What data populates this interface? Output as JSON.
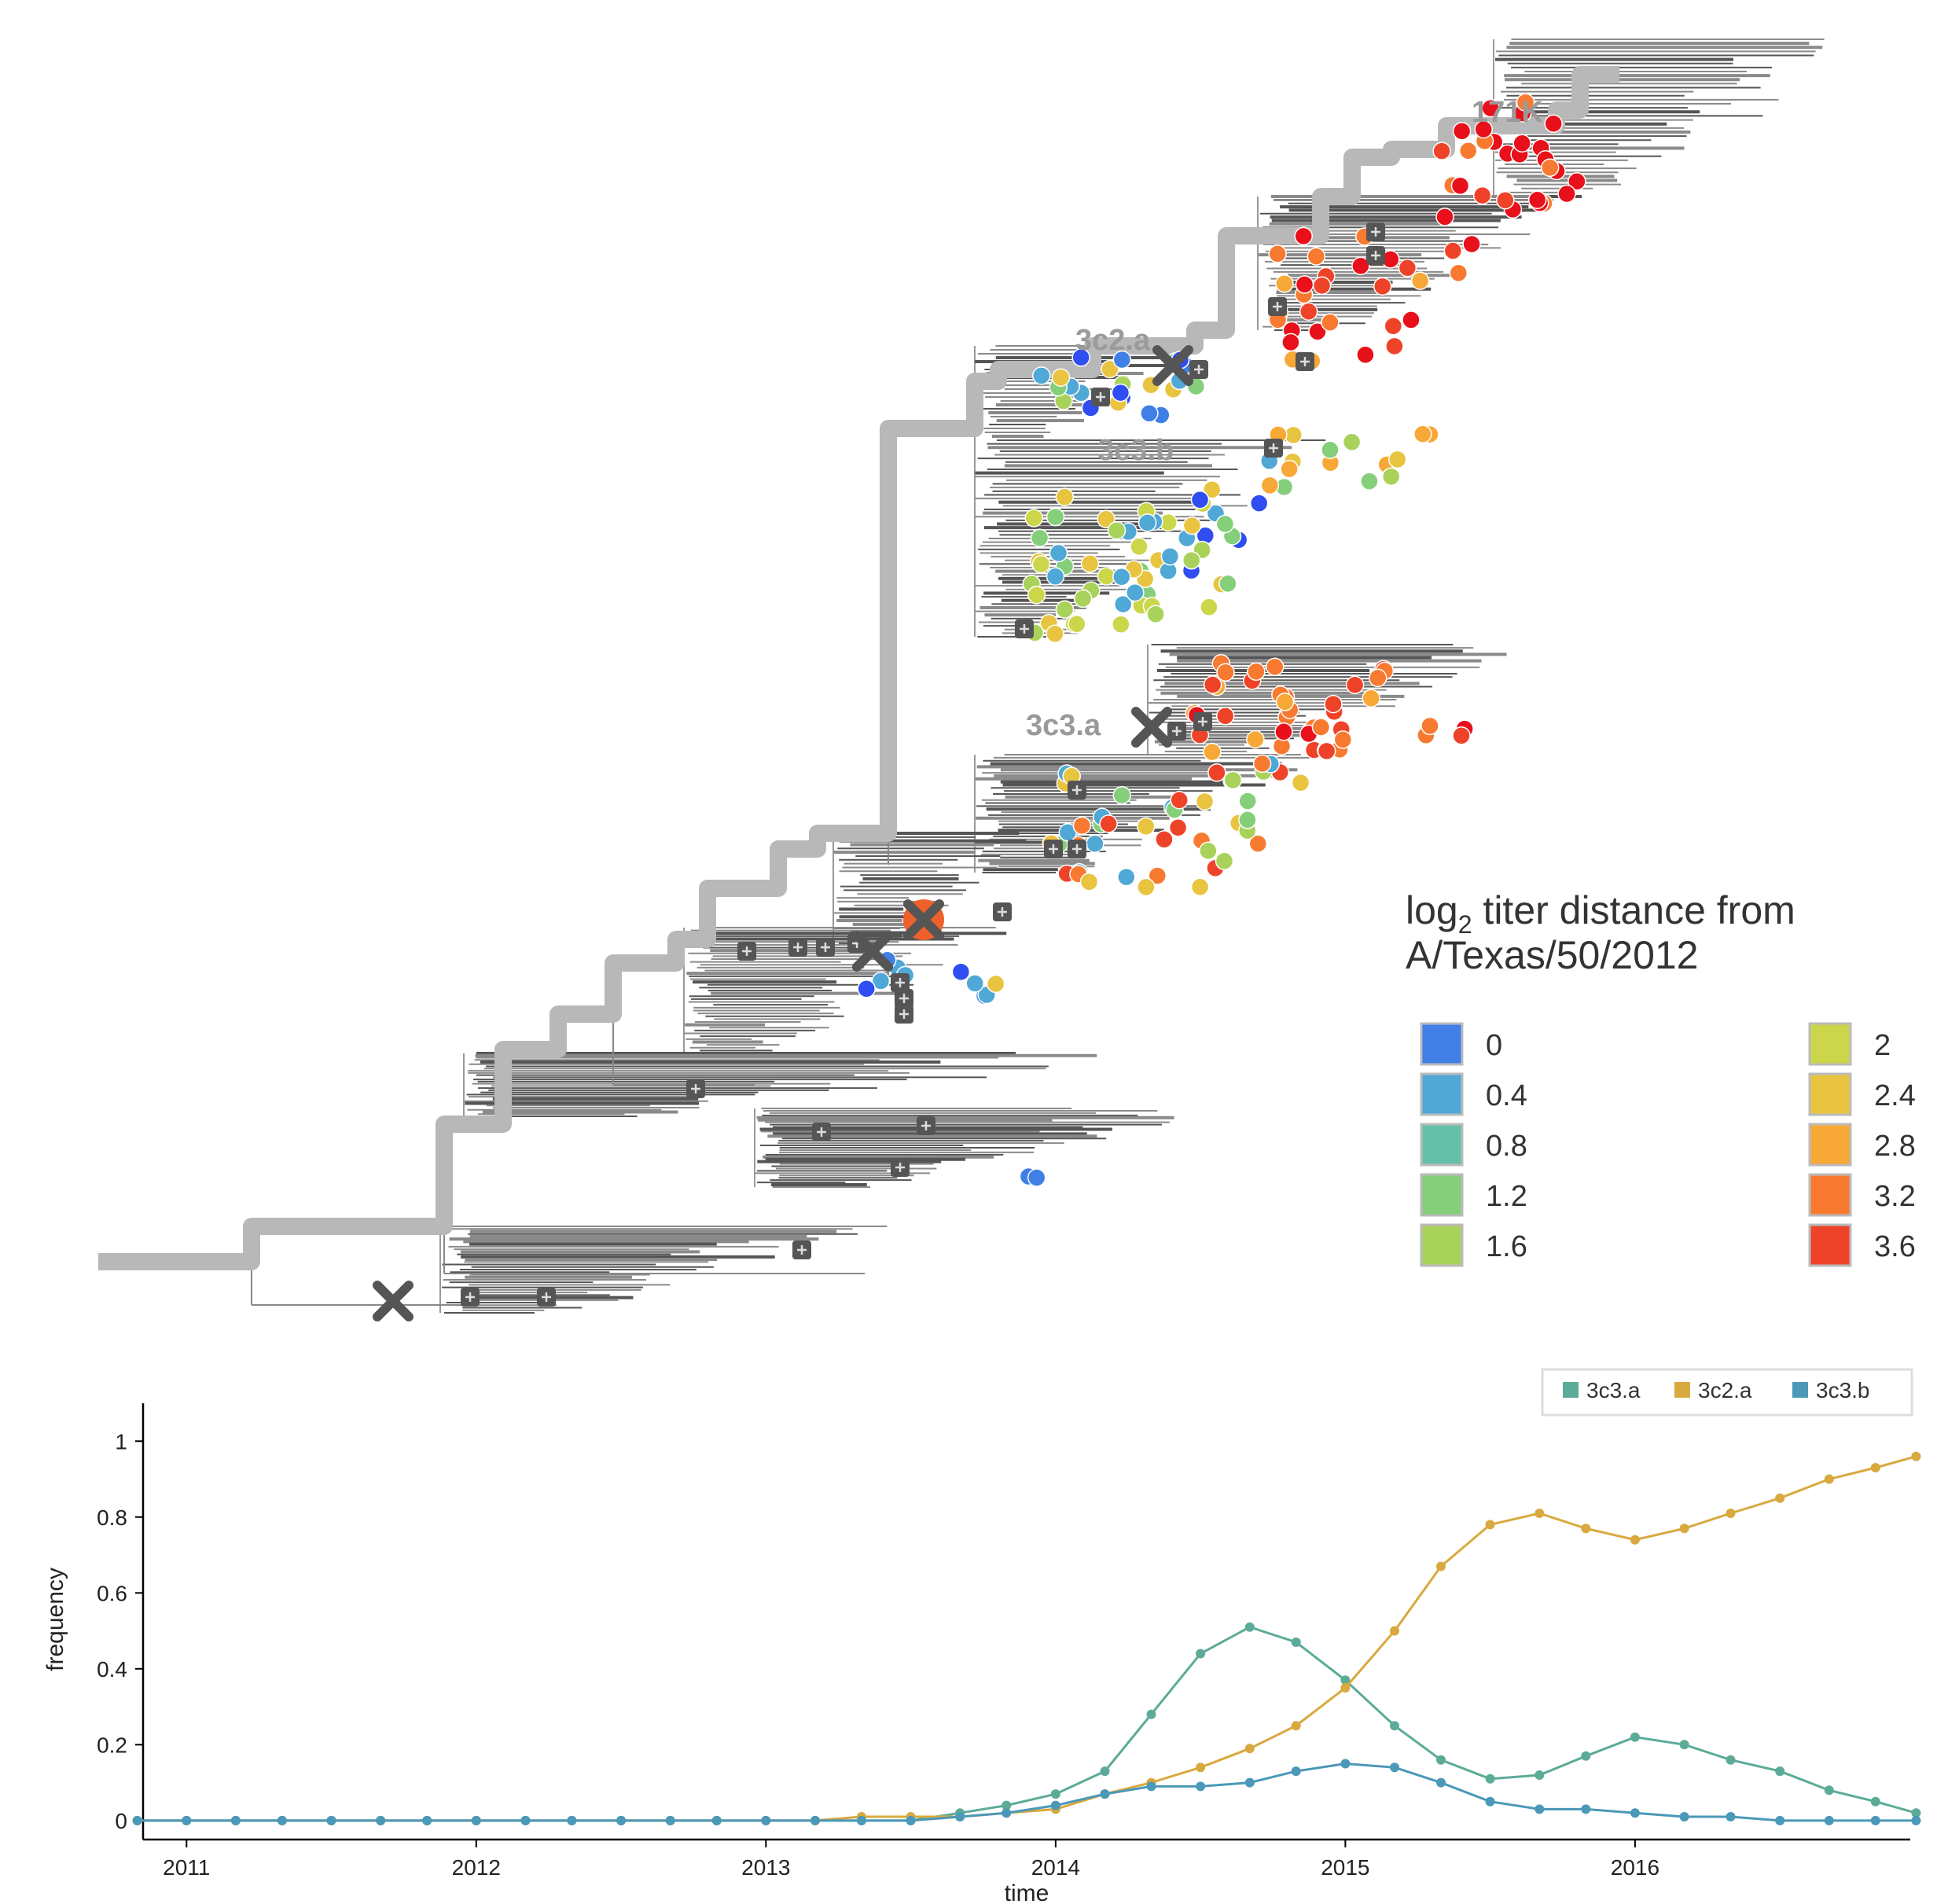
{
  "tree": {
    "clade_labels": [
      "171K",
      "3c2.a",
      "3c3.b",
      "3c3.a"
    ],
    "legend": {
      "title_main": "log",
      "title_sub": "2",
      "title_rest": " titer distance from",
      "title_line2": "A/Texas/50/2012",
      "entries": [
        {
          "label": "0",
          "color": "#3f7fe6"
        },
        {
          "label": "0.4",
          "color": "#4fa8d6"
        },
        {
          "label": "0.8",
          "color": "#64c0a6"
        },
        {
          "label": "1.2",
          "color": "#85cf7b"
        },
        {
          "label": "1.6",
          "color": "#a9d25a"
        },
        {
          "label": "2",
          "color": "#ccd64b"
        },
        {
          "label": "2.4",
          "color": "#e8c440"
        },
        {
          "label": "2.8",
          "color": "#f8a837"
        },
        {
          "label": "3.2",
          "color": "#f77a30"
        },
        {
          "label": "3.6",
          "color": "#ef4329"
        }
      ]
    }
  },
  "chart_data": {
    "type": "line",
    "title": "",
    "xlabel": "time",
    "ylabel": "frequency",
    "xlim": [
      2010.85,
      2016.95
    ],
    "ylim": [
      -0.05,
      1.1
    ],
    "xticks": [
      "2011",
      "2012",
      "2013",
      "2014",
      "2015",
      "2016"
    ],
    "yticks": [
      "0",
      "0.2",
      "0.4",
      "0.6",
      "0.8",
      "1"
    ],
    "legend_position": "top-right",
    "x": [
      2010.83,
      2011.0,
      2011.17,
      2011.33,
      2011.5,
      2011.67,
      2011.83,
      2012.0,
      2012.17,
      2012.33,
      2012.5,
      2012.67,
      2012.83,
      2013.0,
      2013.17,
      2013.33,
      2013.5,
      2013.67,
      2013.83,
      2014.0,
      2014.17,
      2014.33,
      2014.5,
      2014.67,
      2014.83,
      2015.0,
      2015.17,
      2015.33,
      2015.5,
      2015.67,
      2015.83,
      2016.0,
      2016.17,
      2016.33,
      2016.5,
      2016.67,
      2016.83,
      2016.97
    ],
    "series": [
      {
        "name": "3c3.a",
        "color": "#5bab98",
        "values": [
          0,
          0,
          0,
          0,
          0,
          0,
          0,
          0,
          0,
          0,
          0,
          0,
          0,
          0,
          0,
          0,
          0,
          0.02,
          0.04,
          0.07,
          0.13,
          0.28,
          0.44,
          0.51,
          0.47,
          0.37,
          0.25,
          0.16,
          0.11,
          0.12,
          0.17,
          0.22,
          0.2,
          0.16,
          0.13,
          0.08,
          0.05,
          0.02
        ]
      },
      {
        "name": "3c2.a",
        "color": "#d8a93e",
        "values": [
          0,
          0,
          0,
          0,
          0,
          0,
          0,
          0,
          0,
          0,
          0,
          0,
          0,
          0,
          0,
          0.01,
          0.01,
          0.01,
          0.02,
          0.03,
          0.07,
          0.1,
          0.14,
          0.19,
          0.25,
          0.35,
          0.5,
          0.67,
          0.78,
          0.81,
          0.77,
          0.74,
          0.77,
          0.81,
          0.85,
          0.9,
          0.93,
          0.96
        ]
      },
      {
        "name": "3c3.b",
        "color": "#4b98b8",
        "values": [
          0,
          0,
          0,
          0,
          0,
          0,
          0,
          0,
          0,
          0,
          0,
          0,
          0,
          0,
          0,
          0,
          0,
          0.01,
          0.02,
          0.04,
          0.07,
          0.09,
          0.09,
          0.1,
          0.13,
          0.15,
          0.14,
          0.1,
          0.05,
          0.03,
          0.03,
          0.02,
          0.01,
          0.01,
          0,
          0,
          0,
          0
        ]
      }
    ]
  }
}
